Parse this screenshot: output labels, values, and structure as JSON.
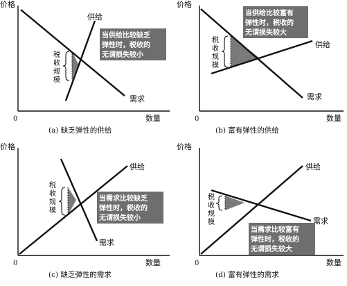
{
  "axis_labels": {
    "y": "价格",
    "x": "数量",
    "origin": "0"
  },
  "curve_labels": {
    "supply": "供给",
    "demand": "需求"
  },
  "tax_label": [
    "税",
    "收",
    "规",
    "模"
  ],
  "panels": [
    {
      "caption": "(a) 缺乏弹性的供给",
      "note": [
        "当供给比较缺乏",
        "弹性时，税收的",
        "无谓损失较小"
      ]
    },
    {
      "caption": "(b) 富有弹性的供给",
      "note": [
        "当供给比较富有",
        "弹性时，税收的",
        "无谓损失较大"
      ]
    },
    {
      "caption": "(c) 缺乏弹性的需求",
      "note": [
        "当需求比较缺乏",
        "弹性时，税收的",
        "无谓损失较小"
      ]
    },
    {
      "caption": "(d) 富有弹性的需求",
      "note": [
        "当需求比较富有",
        "弹性时，税收的",
        "无谓损失较大"
      ]
    }
  ]
}
